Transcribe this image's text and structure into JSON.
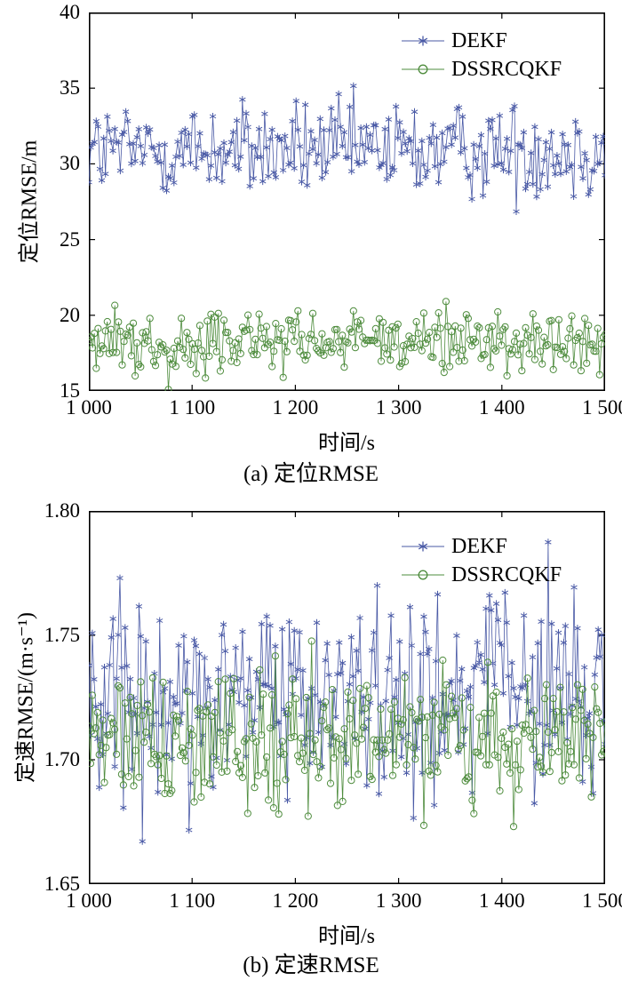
{
  "page": {
    "background": "#ffffff"
  },
  "chart_data": [
    {
      "id": "a",
      "type": "line",
      "title": "(a) 定位RMSE",
      "xlabel": "时间/s",
      "ylabel": "定位RMSE/m",
      "xlim": [
        1000,
        1500
      ],
      "ylim": [
        15,
        40
      ],
      "xticks": {
        "values": [
          1000,
          1100,
          1200,
          1300,
          1400,
          1500
        ],
        "labels": [
          "1 000",
          "1 100",
          "1 200",
          "1 300",
          "1 400",
          "1 500"
        ]
      },
      "yticks": {
        "values": [
          15,
          20,
          25,
          30,
          35,
          40
        ],
        "labels": [
          "15",
          "20",
          "25",
          "30",
          "35",
          "40"
        ]
      },
      "grid": false,
      "legend_position": "top-right",
      "series": [
        {
          "name": "DEKF",
          "marker": "asterisk",
          "color": "#4a5aa6",
          "generator": {
            "distribution": "normal",
            "n": 280,
            "mean": 30.9,
            "std": 1.55,
            "min": 24.4,
            "max": 35.3,
            "seed": 12345
          }
        },
        {
          "name": "DSSRCQKF",
          "marker": "circle",
          "color": "#4e8c3d",
          "generator": {
            "distribution": "normal",
            "n": 280,
            "mean": 18.2,
            "std": 1.05,
            "min": 15.0,
            "max": 21.7,
            "seed": 67890
          }
        }
      ]
    },
    {
      "id": "b",
      "type": "line",
      "title": "(b) 定速RMSE",
      "xlabel": "时间/s",
      "ylabel": "定速RMSE/(m·s⁻¹)",
      "xlim": [
        1000,
        1500
      ],
      "ylim": [
        1.65,
        1.8
      ],
      "xticks": {
        "values": [
          1000,
          1100,
          1200,
          1300,
          1400,
          1500
        ],
        "labels": [
          "1 000",
          "1 100",
          "1 200",
          "1 300",
          "1 400",
          "1 500"
        ]
      },
      "yticks": {
        "values": [
          1.65,
          1.7,
          1.75,
          1.8
        ],
        "labels": [
          "1.65",
          "1.70",
          "1.75",
          "1.80"
        ]
      },
      "grid": false,
      "legend_position": "top-right",
      "series": [
        {
          "name": "DEKF",
          "marker": "asterisk",
          "color": "#4a5aa6",
          "generator": {
            "distribution": "normal",
            "n": 300,
            "mean": 1.727,
            "std": 0.021,
            "min": 1.662,
            "max": 1.793,
            "seed": 24680
          }
        },
        {
          "name": "DSSRCQKF",
          "marker": "circle",
          "color": "#4e8c3d",
          "generator": {
            "distribution": "normal",
            "n": 300,
            "mean": 1.708,
            "std": 0.0135,
            "min": 1.664,
            "max": 1.749,
            "seed": 13579
          }
        }
      ]
    }
  ]
}
